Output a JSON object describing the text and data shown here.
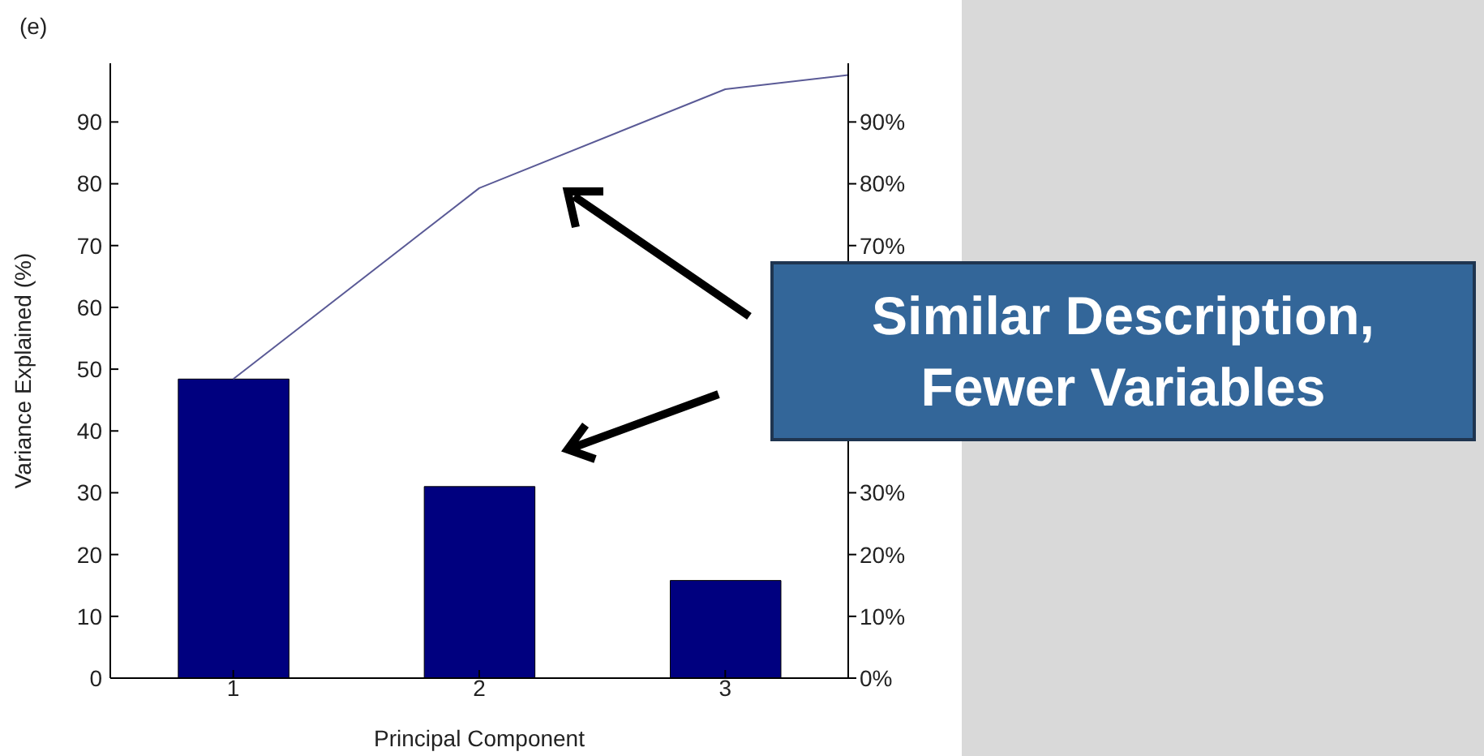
{
  "chart_data": {
    "type": "bar",
    "xlabel": "Principal Component",
    "ylabel": "Variance Explained (%)",
    "annotations": [
      "(e)",
      "Similar Description, Fewer Variables"
    ],
    "xlim": [
      0.5,
      3.5
    ],
    "xticks": [
      1,
      2,
      3
    ],
    "ylim": [
      0,
      99.5
    ],
    "yticks": [
      0,
      10,
      20,
      30,
      40,
      50,
      60,
      70,
      80,
      90
    ],
    "y2lim": [
      0,
      99.5
    ],
    "y2ticks": [
      {
        "value": 0,
        "label": "0%"
      },
      {
        "value": 10,
        "label": "10%"
      },
      {
        "value": 20,
        "label": "20%"
      },
      {
        "value": 30,
        "label": "30%"
      },
      {
        "value": 40,
        "label": null
      },
      {
        "value": 50,
        "label": null
      },
      {
        "value": 60,
        "label": null
      },
      {
        "value": 70,
        "label": "70%"
      },
      {
        "value": 80,
        "label": "80%"
      },
      {
        "value": 90,
        "label": "90%"
      }
    ],
    "series": [
      {
        "color": "#00007f",
        "x": [
          1,
          2,
          3
        ],
        "values": [
          48.4,
          31.0,
          15.8
        ]
      },
      {
        "type": "line",
        "color": "#5a5a96",
        "x": [
          1,
          2,
          3,
          3.5
        ],
        "values": [
          48.4,
          79.3,
          95.3,
          97.6
        ]
      }
    ]
  }
}
